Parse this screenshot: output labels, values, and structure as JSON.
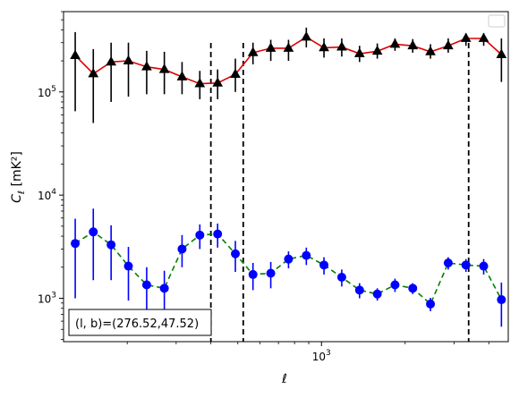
{
  "chart_data": {
    "type": "line",
    "title": "",
    "xlabel": "ℓ",
    "ylabel_main": "C",
    "ylabel_sub": "ℓ",
    "ylabel_unit": "[mK²]",
    "xscale": "log",
    "yscale": "log",
    "xlim": [
      118,
      4700
    ],
    "ylim": [
      380,
      600000
    ],
    "x_tick_labels": [
      {
        "value": 1000,
        "label": "10",
        "sup": "3"
      }
    ],
    "y_tick_labels": [
      {
        "value": 1000,
        "label": "10",
        "sup": "3"
      },
      {
        "value": 10000,
        "label": "10",
        "sup": "4"
      },
      {
        "value": 100000,
        "label": "10",
        "sup": "5"
      }
    ],
    "vlines": [
      400,
      523,
      3385
    ],
    "annotation": "(l, b)=(276.52,47.52)",
    "legend": "top-right (empty)",
    "series": [
      {
        "color": "#000000",
        "line_color": "#e00000",
        "line_style": "solid",
        "marker": "triangle",
        "x": [
          130,
          151,
          175,
          202,
          235,
          272,
          315,
          365,
          423,
          490,
          567,
          657,
          761,
          882,
          1021,
          1183,
          1371,
          1588,
          1839,
          2130,
          2467,
          2858,
          3310,
          3834,
          4441
        ],
        "y": [
          225000,
          150000,
          195000,
          200000,
          175000,
          165000,
          140000,
          120000,
          122000,
          148000,
          240000,
          265000,
          265000,
          340000,
          268000,
          272000,
          235000,
          248000,
          290000,
          280000,
          245000,
          280000,
          330000,
          330000,
          230000
        ],
        "lo": [
          65000,
          50000,
          80000,
          90000,
          95000,
          95000,
          95000,
          85000,
          85000,
          100000,
          185000,
          200000,
          200000,
          270000,
          215000,
          220000,
          195000,
          210000,
          250000,
          240000,
          210000,
          240000,
          280000,
          280000,
          125000
        ],
        "hi": [
          380000,
          260000,
          300000,
          300000,
          250000,
          245000,
          195000,
          160000,
          165000,
          210000,
          300000,
          320000,
          320000,
          420000,
          330000,
          330000,
          280000,
          295000,
          330000,
          325000,
          290000,
          330000,
          370000,
          370000,
          330000
        ]
      },
      {
        "color": "#0000ff",
        "line_color": "#008000",
        "line_style": "dashed",
        "marker": "circle",
        "x": [
          130,
          151,
          175,
          202,
          235,
          272,
          315,
          365,
          423,
          490,
          567,
          657,
          761,
          882,
          1021,
          1183,
          1371,
          1588,
          1839,
          2130,
          2467,
          2858,
          3310,
          3834,
          4441
        ],
        "y": [
          3400,
          4400,
          3300,
          2050,
          1350,
          1250,
          3000,
          4100,
          4200,
          2700,
          1700,
          1750,
          2400,
          2600,
          2100,
          1600,
          1200,
          1100,
          1350,
          1250,
          880,
          2200,
          2100,
          2050,
          970
        ],
        "lo": [
          1000,
          1500,
          1500,
          950,
          700,
          650,
          2000,
          3000,
          3100,
          1800,
          1200,
          1250,
          1950,
          2100,
          1700,
          1300,
          1000,
          950,
          1150,
          1100,
          750,
          1900,
          1800,
          1700,
          530
        ],
        "hi": [
          5900,
          7400,
          5100,
          3150,
          2000,
          1850,
          4100,
          5200,
          5300,
          3600,
          2200,
          2250,
          2850,
          3100,
          2500,
          1900,
          1400,
          1250,
          1550,
          1400,
          1010,
          2500,
          2400,
          2400,
          1420
        ]
      }
    ]
  }
}
